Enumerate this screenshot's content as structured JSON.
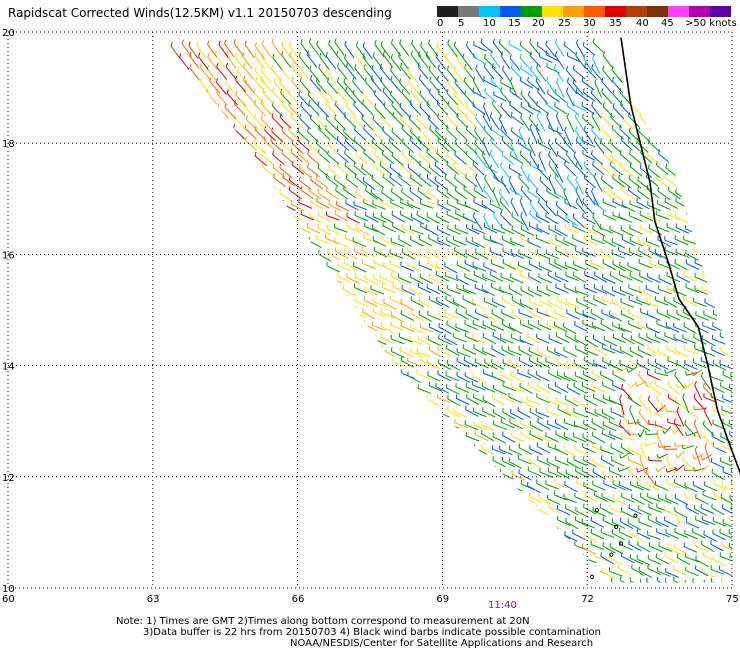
{
  "title": "Rapidscat Corrected Winds(12.5KM) v1.1 20150703 descending",
  "legend": {
    "colors": [
      "#202020",
      "#7a7a7a",
      "#00c4ff",
      "#0058f0",
      "#00a000",
      "#ffe000",
      "#ffa000",
      "#ff5a00",
      "#e00000",
      "#b04000",
      "#7a3400",
      "#ff40ff",
      "#b000b0",
      "#6000a8"
    ],
    "labels": [
      "0",
      "5",
      "10",
      "15",
      "20",
      "25",
      "30",
      "35",
      "40",
      "45",
      ">50 knots"
    ]
  },
  "axes": {
    "y_labels": [
      "20",
      "18",
      "16",
      "14",
      "12",
      "10"
    ],
    "x_labels": [
      "60",
      "63",
      "66",
      "69",
      "72",
      "75"
    ]
  },
  "time_label": "11:40",
  "notes": [
    "Note: 1) Times are GMT 2)Times along bottom correspond to measurement at 20N",
    "3)Data buffer is 22 hrs from 20150703 4) Black wind barbs indicate possible contamination"
  ],
  "credit": "NOAA/NESDIS/Center for Satellite Applications and Research",
  "wind_field": {
    "swath_polygon": [
      [
        63.2,
        19.9
      ],
      [
        72.2,
        19.9
      ],
      [
        73.8,
        17.5
      ],
      [
        75,
        14
      ],
      [
        75,
        10.1
      ],
      [
        72.5,
        10.1
      ],
      [
        68,
        14
      ],
      [
        64.5,
        18.5
      ],
      [
        63.2,
        19.9
      ]
    ],
    "zones": [
      {
        "lon": [
          63.2,
          64.9
        ],
        "lat": [
          18.7,
          19.9
        ],
        "speed_class": "red"
      },
      {
        "lon": [
          63.9,
          65.8
        ],
        "lat": [
          16.3,
          19.9
        ],
        "speed_class": "orange"
      },
      {
        "lon": [
          64.9,
          66.8
        ],
        "lat": [
          14.3,
          19.9
        ],
        "speed_class": "yellow"
      },
      {
        "lon": [
          66.0,
          69.5
        ],
        "lat": [
          10.1,
          19.9
        ],
        "speed_class": "green"
      },
      {
        "lon": [
          69.5,
          72.2
        ],
        "lat": [
          16.5,
          19.9
        ],
        "speed_class": "blue"
      },
      {
        "lon": [
          72.5,
          74.5
        ],
        "lat": [
          12.0,
          14.0
        ],
        "speed_class": "mixed"
      }
    ]
  }
}
